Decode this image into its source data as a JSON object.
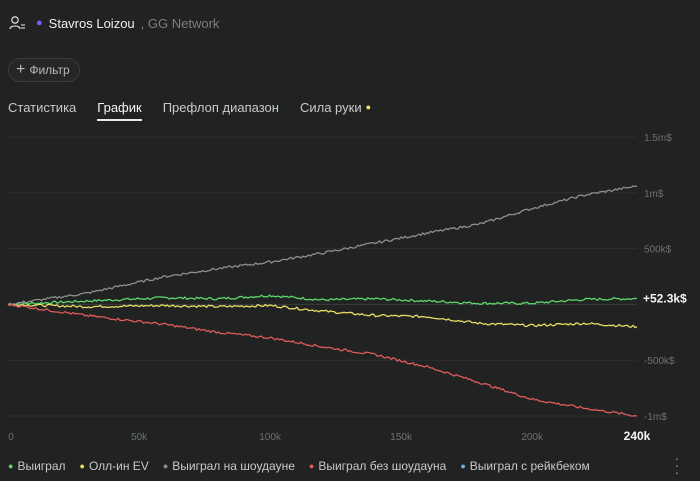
{
  "header": {
    "player_name": "Stavros Loizou",
    "network": "GG Network",
    "player_dot_color": "#7b5cff"
  },
  "filter": {
    "label": "Фильтр",
    "icon": "plus-icon"
  },
  "tabs": [
    {
      "label": "Статистика",
      "active": false
    },
    {
      "label": "График",
      "active": true
    },
    {
      "label": "Префлоп диапазон",
      "active": false
    },
    {
      "label": "Сила руки",
      "active": false,
      "indicator_color": "#f2e26b"
    }
  ],
  "chart_data": {
    "type": "line",
    "x_ticks": [
      "0",
      "50k",
      "100k",
      "150k",
      "200k",
      "240k"
    ],
    "x_tick_values": [
      0,
      50000,
      100000,
      150000,
      200000,
      240000
    ],
    "y_ticks": [
      "1.5m$",
      "1m$",
      "500k$",
      "-500k$",
      "-1m$"
    ],
    "y_tick_values": [
      1500000,
      1000000,
      500000,
      -500000,
      -1000000
    ],
    "xlim": [
      0,
      240000
    ],
    "ylim": [
      -1000000,
      1500000
    ],
    "current_value_label": "+52.3k$",
    "series": [
      {
        "name": "Выиграл",
        "color": "#5fd66b",
        "x": [
          0,
          30000,
          60000,
          80000,
          100000,
          120000,
          140000,
          160000,
          180000,
          200000,
          220000,
          240000
        ],
        "values": [
          0,
          30000,
          60000,
          50000,
          80000,
          40000,
          50000,
          30000,
          10000,
          10000,
          45000,
          52300
        ]
      },
      {
        "name": "Олл-ин EV",
        "color": "#e8dd62",
        "x": [
          0,
          30000,
          60000,
          80000,
          100000,
          120000,
          140000,
          160000,
          180000,
          200000,
          220000,
          240000
        ],
        "values": [
          0,
          -20000,
          -10000,
          -20000,
          -10000,
          -60000,
          -100000,
          -110000,
          -170000,
          -190000,
          -170000,
          -200000
        ]
      },
      {
        "name": "Выиграл на шоудауне",
        "color": "#8d8f8e",
        "x": [
          0,
          30000,
          60000,
          80000,
          100000,
          120000,
          140000,
          160000,
          180000,
          200000,
          220000,
          240000
        ],
        "values": [
          0,
          100000,
          250000,
          320000,
          380000,
          460000,
          550000,
          640000,
          720000,
          860000,
          980000,
          1060000
        ]
      },
      {
        "name": "Выиграл без шоудауна",
        "color": "#e05a5a",
        "x": [
          0,
          30000,
          60000,
          80000,
          100000,
          120000,
          140000,
          160000,
          180000,
          200000,
          220000,
          240000
        ],
        "values": [
          0,
          -100000,
          -180000,
          -250000,
          -300000,
          -380000,
          -450000,
          -560000,
          -700000,
          -850000,
          -930000,
          -1000000
        ]
      },
      {
        "name": "Выиграл с рейкбеком",
        "color": "#6fb0d8",
        "x": [],
        "values": []
      }
    ]
  },
  "legend": [
    {
      "label": "Выиграл",
      "color": "#5fd66b"
    },
    {
      "label": "Олл-ин EV",
      "color": "#e8dd62"
    },
    {
      "label": "Выиграл на шоудауне",
      "color": "#8d8f8e"
    },
    {
      "label": "Выиграл без шоудауна",
      "color": "#e05a5a"
    },
    {
      "label": "Выиграл с рейкбеком",
      "color": "#6fb0d8"
    }
  ]
}
